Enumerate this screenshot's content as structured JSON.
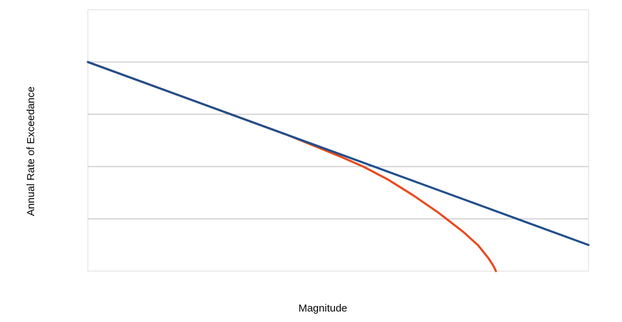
{
  "chart_data": {
    "type": "line",
    "title": "",
    "xlabel": "Magnitude",
    "ylabel": "Annual Rate of Exceedance",
    "xlim": [
      0,
      1
    ],
    "ylim": [
      0,
      5
    ],
    "yscale": "log",
    "grid": true,
    "tick_labels_shown": false,
    "legend": "none",
    "series": [
      {
        "color": "#1f4e8c",
        "x": [
          0.0,
          1.0
        ],
        "y": [
          4.0,
          0.5
        ]
      },
      {
        "color": "#e8481c",
        "x": [
          0.0,
          0.2,
          0.4,
          0.5,
          0.55,
          0.6,
          0.65,
          0.7,
          0.75,
          0.78,
          0.8,
          0.81,
          0.815
        ],
        "y": [
          4.0,
          3.3,
          2.6,
          2.21,
          2.0,
          1.75,
          1.45,
          1.12,
          0.75,
          0.49,
          0.25,
          0.1,
          0.0
        ]
      }
    ]
  }
}
